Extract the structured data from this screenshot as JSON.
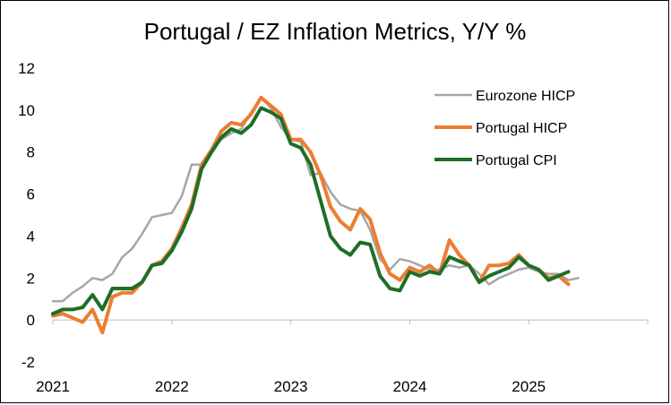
{
  "chart_data": {
    "type": "line",
    "title": "Portugal / EZ Inflation Metrics, Y/Y %",
    "xlabel": "",
    "ylabel": "",
    "ylim": [
      -2,
      12
    ],
    "yticks": [
      -2,
      0,
      2,
      4,
      6,
      8,
      10,
      12
    ],
    "xticks": [
      {
        "label": "2021",
        "x": 2021.0
      },
      {
        "label": "2022",
        "x": 2022.0
      },
      {
        "label": "2023",
        "x": 2023.0
      },
      {
        "label": "2024",
        "x": 2024.0
      },
      {
        "label": "2025",
        "x": 2025.0
      }
    ],
    "xlim": [
      2021.0,
      2026.0
    ],
    "x_start": 2021.0,
    "x_step": 0.0833333,
    "legend_position": "top-right",
    "series": [
      {
        "name": "Eurozone HICP",
        "color": "#a6a6a6",
        "values": [
          0.9,
          0.9,
          1.3,
          1.6,
          2.0,
          1.9,
          2.2,
          3.0,
          3.4,
          4.1,
          4.9,
          5.0,
          5.1,
          5.9,
          7.4,
          7.4,
          8.1,
          8.6,
          8.9,
          9.1,
          9.9,
          10.6,
          10.1,
          9.2,
          8.6,
          8.5,
          6.9,
          7.0,
          6.1,
          5.5,
          5.3,
          5.2,
          4.3,
          2.9,
          2.4,
          2.9,
          2.8,
          2.6,
          2.4,
          2.4,
          2.6,
          2.5,
          2.6,
          2.2,
          1.7,
          2.0,
          2.2,
          2.4,
          2.5,
          2.3,
          2.2,
          2.2,
          1.9,
          2.0
        ]
      },
      {
        "name": "Portugal HICP",
        "color": "#ed7d31",
        "values": [
          0.2,
          0.3,
          0.1,
          -0.1,
          0.5,
          -0.6,
          1.1,
          1.3,
          1.3,
          1.8,
          2.6,
          2.8,
          3.4,
          4.4,
          5.5,
          7.4,
          8.1,
          9.0,
          9.4,
          9.3,
          9.8,
          10.6,
          10.2,
          9.8,
          8.6,
          8.6,
          8.0,
          6.9,
          5.4,
          4.7,
          4.3,
          5.3,
          4.8,
          3.2,
          2.2,
          1.9,
          2.5,
          2.3,
          2.6,
          2.2,
          3.8,
          3.1,
          2.6,
          1.8,
          2.6,
          2.6,
          2.7,
          3.1,
          2.6,
          2.4,
          2.0,
          2.1,
          1.7
        ]
      },
      {
        "name": "Portugal CPI",
        "color": "#1e6e28",
        "values": [
          0.3,
          0.5,
          0.5,
          0.6,
          1.2,
          0.5,
          1.5,
          1.5,
          1.5,
          1.8,
          2.6,
          2.7,
          3.3,
          4.2,
          5.3,
          7.2,
          8.0,
          8.7,
          9.1,
          8.9,
          9.3,
          10.1,
          9.9,
          9.6,
          8.4,
          8.2,
          7.4,
          5.7,
          4.0,
          3.4,
          3.1,
          3.7,
          3.6,
          2.1,
          1.5,
          1.4,
          2.3,
          2.1,
          2.3,
          2.2,
          3.0,
          2.8,
          2.6,
          1.8,
          2.1,
          2.3,
          2.5,
          3.0,
          2.6,
          2.4,
          1.9,
          2.1,
          2.3
        ]
      }
    ]
  }
}
